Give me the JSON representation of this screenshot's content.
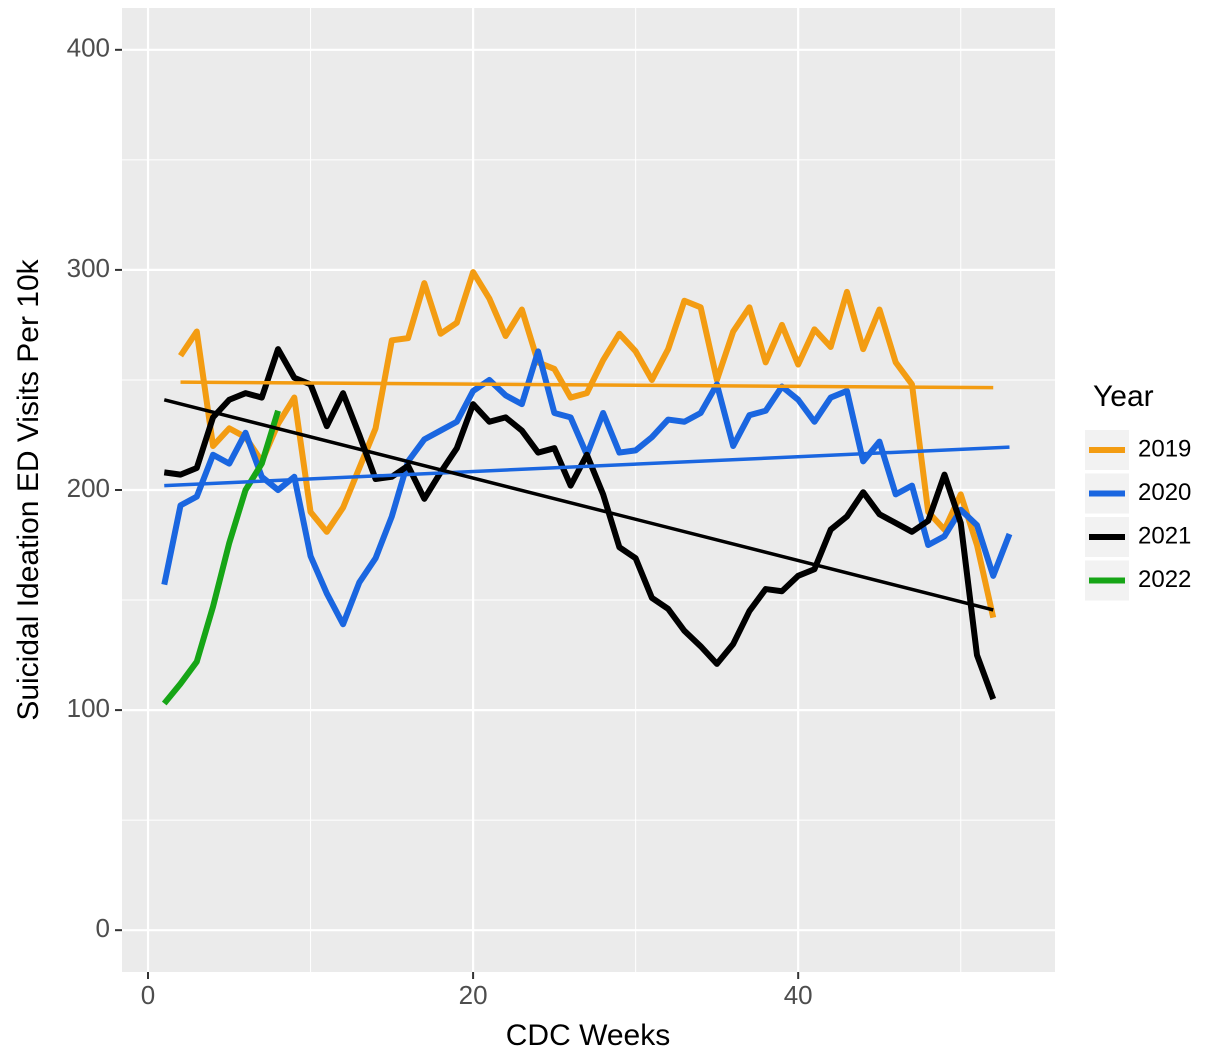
{
  "chart_data": {
    "type": "line",
    "x_label": "CDC Weeks",
    "y_label": "Suicidal Ideation ED Visits Per 10k",
    "legend_title": "Year",
    "legend": "right",
    "xlim": [
      -1.6,
      55.8
    ],
    "xticks": [
      0,
      20,
      40
    ],
    "x_minor_ticks": [
      10,
      30,
      50
    ],
    "ylim": [
      -19,
      419
    ],
    "yticks": [
      0,
      100,
      200,
      300,
      400
    ],
    "y_minor_ticks": [
      50,
      150,
      250,
      350
    ],
    "grid": true,
    "series": [
      {
        "name": "2019",
        "color": "#f39c12",
        "x": [
          2,
          3,
          4,
          5,
          6,
          7,
          8,
          9,
          10,
          11,
          12,
          13,
          14,
          15,
          16,
          17,
          18,
          19,
          20,
          21,
          22,
          23,
          24,
          25,
          26,
          27,
          28,
          29,
          30,
          31,
          32,
          33,
          34,
          35,
          36,
          37,
          38,
          39,
          40,
          41,
          42,
          43,
          44,
          45,
          46,
          47,
          48,
          49,
          50,
          51,
          52
        ],
        "values": [
          261,
          272,
          220,
          228,
          224,
          213,
          230,
          242,
          190,
          181,
          192,
          210,
          228,
          268,
          269,
          294,
          271,
          276,
          299,
          287,
          270,
          282,
          258,
          255,
          242,
          244,
          259,
          271,
          263,
          250,
          264,
          286,
          283,
          250,
          272,
          283,
          258,
          275,
          257,
          273,
          265,
          290,
          264,
          282,
          258,
          248,
          190,
          182,
          198,
          175,
          142
        ],
        "trend": {
          "x": [
            2,
            52
          ],
          "y": [
            249,
            246.5
          ]
        }
      },
      {
        "name": "2020",
        "color": "#1a66e0",
        "x": [
          1,
          2,
          3,
          4,
          5,
          6,
          7,
          8,
          9,
          10,
          11,
          12,
          13,
          14,
          15,
          16,
          17,
          18,
          19,
          20,
          21,
          22,
          23,
          24,
          25,
          26,
          27,
          28,
          29,
          30,
          31,
          32,
          33,
          34,
          35,
          36,
          37,
          38,
          39,
          40,
          41,
          42,
          43,
          44,
          45,
          46,
          47,
          48,
          49,
          50,
          51,
          52,
          53
        ],
        "values": [
          157,
          193,
          197,
          216,
          212,
          226,
          206,
          200,
          206,
          170,
          153,
          139,
          158,
          169,
          188,
          213,
          223,
          227,
          231,
          245,
          250,
          243,
          239,
          263,
          235,
          233,
          216,
          235,
          217,
          218,
          224,
          232,
          231,
          235,
          248,
          220,
          234,
          236,
          247,
          241,
          231,
          242,
          245,
          213,
          222,
          198,
          202,
          175,
          179,
          191,
          184,
          161,
          180
        ],
        "trend": {
          "x": [
            1,
            53
          ],
          "y": [
            202,
            219.5
          ]
        }
      },
      {
        "name": "2021",
        "color": "#000000",
        "x": [
          1,
          2,
          3,
          4,
          5,
          6,
          7,
          8,
          9,
          10,
          11,
          12,
          13,
          14,
          15,
          16,
          17,
          18,
          19,
          20,
          21,
          22,
          23,
          24,
          25,
          26,
          27,
          28,
          29,
          30,
          31,
          32,
          33,
          34,
          35,
          36,
          37,
          38,
          39,
          40,
          41,
          42,
          43,
          44,
          45,
          46,
          47,
          48,
          49,
          50,
          51,
          52
        ],
        "values": [
          208,
          207,
          210,
          233,
          241,
          244,
          242,
          264,
          251,
          248,
          229,
          244,
          225,
          205,
          206,
          211,
          196,
          208,
          219,
          239,
          231,
          233,
          227,
          217,
          219,
          202,
          216,
          198,
          174,
          169,
          151,
          146,
          136,
          129,
          121,
          130,
          145,
          155,
          154,
          161,
          164,
          182,
          188,
          199,
          189,
          185,
          181,
          186,
          207,
          185,
          125,
          105
        ],
        "trend": {
          "x": [
            1,
            52
          ],
          "y": [
            241,
            145.5
          ]
        }
      },
      {
        "name": "2022",
        "color": "#16a516",
        "x": [
          1,
          2,
          3,
          4,
          5,
          6,
          7,
          8
        ],
        "values": [
          103,
          112,
          122,
          147,
          176,
          200,
          212,
          236
        ]
      }
    ]
  }
}
